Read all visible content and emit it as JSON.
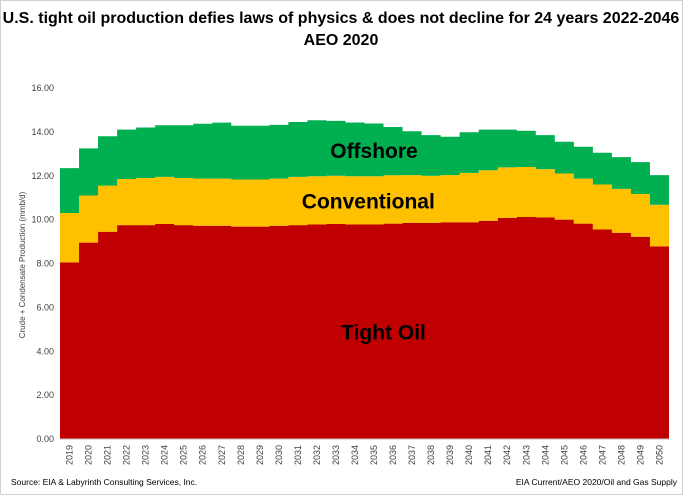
{
  "title_line1": "U.S. tight oil production defies laws of physics & does not decline for 24 years 2022-2046",
  "title_line2": "AEO 2020",
  "source_text": "Source:  EIA & Labyrinth Consulting Services, Inc.",
  "right_note": "EIA Current/AEO 2020/Oil and Gas Supply",
  "chart_data": {
    "type": "area",
    "stacked": true,
    "ylabel": "Crude + Condensate Production  (mmb/d)",
    "ylim": [
      0,
      16
    ],
    "ytick_labels": [
      "0.00",
      "2.00",
      "4.00",
      "6.00",
      "8.00",
      "10.00",
      "12.00",
      "14.00",
      "16.00"
    ],
    "categories": [
      "2019",
      "2020",
      "2021",
      "2022",
      "2023",
      "2024",
      "2025",
      "2026",
      "2027",
      "2028",
      "2029",
      "2030",
      "2031",
      "2032",
      "2033",
      "2034",
      "2035",
      "2036",
      "2037",
      "2038",
      "2039",
      "2040",
      "2041",
      "2042",
      "2043",
      "2044",
      "2045",
      "2046",
      "2047",
      "2048",
      "2049",
      "2050"
    ],
    "series": [
      {
        "name": "Tight Oil",
        "color": "#c00000",
        "values": [
          8.05,
          8.95,
          9.45,
          9.75,
          9.75,
          9.8,
          9.75,
          9.72,
          9.72,
          9.68,
          9.68,
          9.72,
          9.75,
          9.78,
          9.8,
          9.78,
          9.78,
          9.82,
          9.85,
          9.85,
          9.88,
          9.88,
          9.95,
          10.08,
          10.12,
          10.1,
          10.0,
          9.82,
          9.55,
          9.4,
          9.22,
          8.78
        ]
      },
      {
        "name": "Conventional",
        "color": "#ffc000",
        "values": [
          2.25,
          2.15,
          2.1,
          2.1,
          2.15,
          2.15,
          2.15,
          2.15,
          2.15,
          2.15,
          2.15,
          2.15,
          2.2,
          2.2,
          2.2,
          2.2,
          2.2,
          2.2,
          2.18,
          2.15,
          2.15,
          2.25,
          2.3,
          2.3,
          2.28,
          2.2,
          2.1,
          2.05,
          2.05,
          2.0,
          1.95,
          1.9
        ]
      },
      {
        "name": "Offshore",
        "color": "#00b050",
        "values": [
          2.05,
          2.15,
          2.25,
          2.25,
          2.3,
          2.35,
          2.4,
          2.5,
          2.55,
          2.45,
          2.45,
          2.45,
          2.5,
          2.55,
          2.5,
          2.45,
          2.4,
          2.2,
          2.0,
          1.85,
          1.75,
          1.85,
          1.85,
          1.72,
          1.65,
          1.55,
          1.45,
          1.45,
          1.45,
          1.45,
          1.45,
          1.35
        ]
      }
    ]
  }
}
